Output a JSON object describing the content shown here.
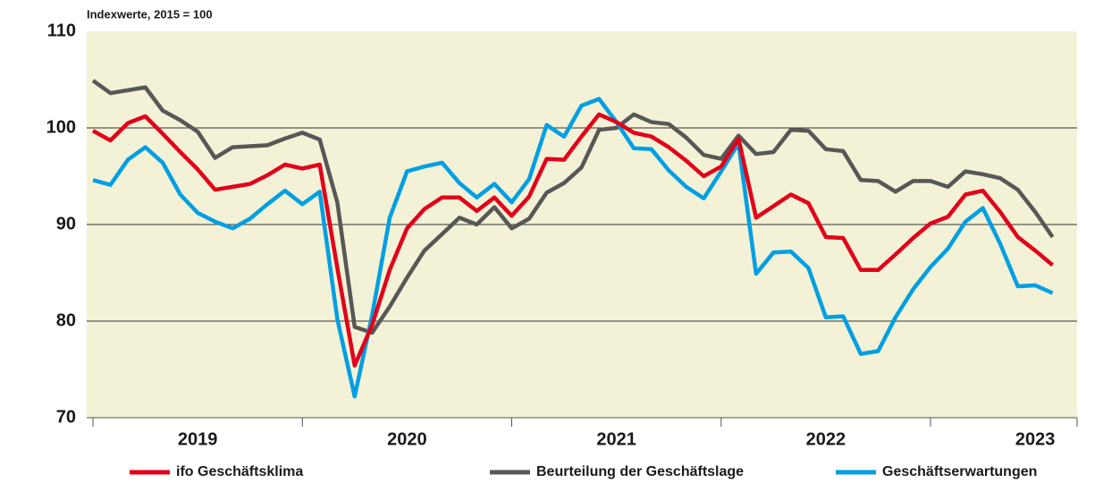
{
  "chart_data": {
    "type": "line",
    "subtitle": "Indexwerte, 2015 = 100",
    "x": [
      2019.0,
      2019.083,
      2019.167,
      2019.25,
      2019.333,
      2019.417,
      2019.5,
      2019.583,
      2019.667,
      2019.75,
      2019.833,
      2019.917,
      2020.0,
      2020.083,
      2020.167,
      2020.25,
      2020.333,
      2020.417,
      2020.5,
      2020.583,
      2020.667,
      2020.75,
      2020.833,
      2020.917,
      2021.0,
      2021.083,
      2021.167,
      2021.25,
      2021.333,
      2021.417,
      2021.5,
      2021.583,
      2021.667,
      2021.75,
      2021.833,
      2021.917,
      2022.0,
      2022.083,
      2022.167,
      2022.25,
      2022.333,
      2022.417,
      2022.5,
      2022.583,
      2022.667,
      2022.75,
      2022.833,
      2022.917,
      2023.0,
      2023.083,
      2023.167,
      2023.25,
      2023.333,
      2023.417,
      2023.5,
      2023.583
    ],
    "series": [
      {
        "name": "ifo Geschäftsklima",
        "color": "#e2001a",
        "values": [
          99.7,
          98.7,
          100.5,
          101.2,
          99.4,
          97.5,
          95.7,
          93.6,
          93.9,
          94.2,
          95.1,
          96.2,
          95.8,
          96.2,
          85.5,
          75.4,
          79.6,
          85.3,
          89.6,
          91.6,
          92.8,
          92.8,
          91.4,
          92.8,
          90.9,
          92.9,
          96.8,
          96.7,
          99.1,
          101.4,
          100.6,
          99.5,
          99.1,
          98.0,
          96.6,
          95.0,
          96.0,
          98.9,
          90.7,
          91.9,
          93.1,
          92.2,
          88.7,
          88.6,
          85.3,
          85.3,
          86.9,
          88.6,
          90.1,
          90.8,
          93.1,
          93.5,
          91.3,
          88.7,
          87.3,
          85.8
        ]
      },
      {
        "name": "Beurteilung der Geschäftslage",
        "color": "#575757",
        "values": [
          104.9,
          103.6,
          103.9,
          104.2,
          101.8,
          100.8,
          99.6,
          96.9,
          98.0,
          98.1,
          98.2,
          98.9,
          99.5,
          98.8,
          92.3,
          79.4,
          78.8,
          81.5,
          84.5,
          87.3,
          89.0,
          90.7,
          90.0,
          91.8,
          89.6,
          90.6,
          93.3,
          94.3,
          95.9,
          99.8,
          100.0,
          101.4,
          100.6,
          100.4,
          99.0,
          97.2,
          96.8,
          99.2,
          97.3,
          97.5,
          99.8,
          99.7,
          97.8,
          97.6,
          94.6,
          94.5,
          93.4,
          94.5,
          94.5,
          93.9,
          95.5,
          95.2,
          94.8,
          93.6,
          91.3,
          88.7
        ]
      },
      {
        "name": "Geschäftserwartungen",
        "color": "#009fe3",
        "values": [
          94.6,
          94.1,
          96.7,
          98.0,
          96.4,
          93.1,
          91.2,
          90.3,
          89.6,
          90.6,
          92.1,
          93.5,
          92.1,
          93.4,
          80.2,
          72.2,
          80.6,
          90.7,
          95.5,
          96.0,
          96.4,
          94.3,
          92.8,
          94.2,
          92.3,
          94.7,
          100.3,
          99.1,
          102.3,
          103.0,
          100.6,
          97.9,
          97.8,
          95.6,
          93.9,
          92.7,
          95.5,
          98.4,
          84.9,
          87.1,
          87.2,
          85.5,
          80.4,
          80.5,
          76.6,
          76.9,
          80.4,
          83.3,
          85.6,
          87.5,
          90.3,
          91.7,
          88.0,
          83.6,
          83.7,
          82.9
        ]
      }
    ],
    "xlim": [
      2018.97,
      2023.7
    ],
    "xticks": [
      {
        "value": 2019.5,
        "label": "2019"
      },
      {
        "value": 2020.5,
        "label": "2020"
      },
      {
        "value": 2021.5,
        "label": "2021"
      },
      {
        "value": 2022.5,
        "label": "2022"
      },
      {
        "value": 2023.5,
        "label": "2023"
      }
    ],
    "x_boundaries": [
      2019,
      2020,
      2021,
      2022,
      2023
    ],
    "ylim": [
      70,
      110
    ],
    "yticks": [
      70,
      80,
      90,
      100,
      110
    ],
    "grid": true,
    "legend": "bottom"
  }
}
